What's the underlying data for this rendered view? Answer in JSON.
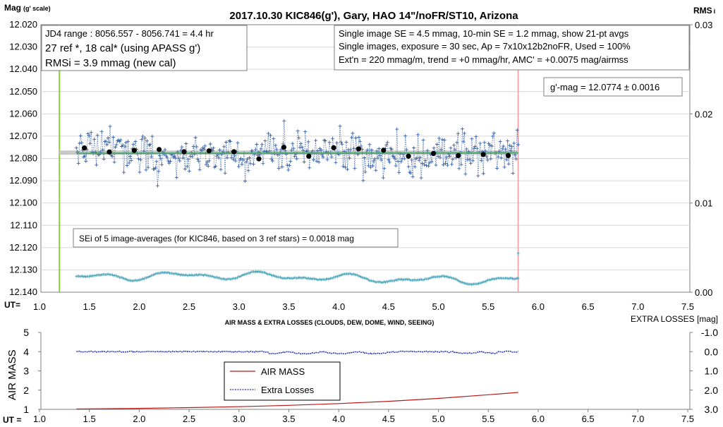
{
  "top": {
    "title": "2017.10.30  KIC846(g'),  Gary, HAO 14\"/noFR/ST10,  Arizona",
    "ylabel_left_main": "Mag",
    "ylabel_left_sub": "(g' scale)",
    "ylabel_right_main": "RMS",
    "ylabel_right_sub": "i",
    "ut_label": "UT=",
    "info_left": [
      "JD4 range : 8056.557 - 8056.741 =  4.4  hr",
      "27 ref *, 18 cal* (using APASS g')",
      "RMSi = 3.9 mmag (new cal)"
    ],
    "info_right": [
      "Single image SE = 4.5 mmag, 10-min SE = 1.2 mmag, show  21-pt avgs",
      "Single images, exposure = 30 sec, Ap = 7x10x12b2noFR,  Used = 100%",
      "Ext'n = 220 mmag/m, trend =  +0 mmag/hr, AMC' = +0.0075 mag/airmss"
    ],
    "mag_box": "g'-mag = 12.0774 ± 0.0016",
    "sei_box": "SEi of 5 image-averages (for KIC846, based on 3 ref stars) = 0.0018  mag"
  },
  "bottom": {
    "title": "AIR MASS & EXTRA LOSSES (CLOUDS, DEW, DOME, WIND, SEEING)",
    "ylabel_left": "AIR MASS",
    "ylabel_right": "EXTRA LOSSES [mag]",
    "ut_label": "UT =",
    "legend": [
      "AIR MASS",
      "Extra Losses"
    ]
  },
  "colors": {
    "data": "#3a62a8",
    "avg": "#000000",
    "trend": "#4aa86a",
    "mean_band": "#c8c8c8",
    "rms": "#4aa6b8",
    "start_line": "#8ccc3c",
    "end_line": "#f4a8b0",
    "airmass": "#b81818",
    "losses": "#1a28b0"
  },
  "chart_data": [
    {
      "type": "scatter",
      "xlabel": "UT=",
      "ylabel": "Mag (g' scale)",
      "y2label": "RMS i",
      "xlim": [
        1.0,
        7.5
      ],
      "ylim": [
        12.02,
        12.14
      ],
      "y_reversed": true,
      "y2lim": [
        0,
        0.03
      ],
      "x_ticks": [
        "1.0",
        "1.5",
        "2.0",
        "2.5",
        "3.0",
        "3.5",
        "4.0",
        "4.5",
        "5.0",
        "5.5",
        "6.0",
        "6.5",
        "7.0",
        "7.5"
      ],
      "y_ticks": [
        "12.020",
        "12.030",
        "12.040",
        "12.050",
        "12.060",
        "12.070",
        "12.080",
        "12.090",
        "12.100",
        "12.110",
        "12.120",
        "12.130",
        "12.140"
      ],
      "y2_ticks": [
        "0.03",
        "0.02",
        "0.01",
        "0.00"
      ],
      "grid": true,
      "series": [
        {
          "kind": "single-images",
          "x_range": [
            1.37,
            5.8
          ],
          "center": 12.0775,
          "spread": 0.0045
        },
        {
          "kind": "averages",
          "x": [
            1.45,
            1.7,
            1.95,
            2.2,
            2.45,
            2.7,
            2.95,
            3.2,
            3.45,
            3.7,
            3.95,
            4.2,
            4.45,
            4.7,
            4.95,
            5.2,
            5.45,
            5.7
          ],
          "y": [
            12.0753,
            12.0771,
            12.0764,
            12.076,
            12.077,
            12.0766,
            12.077,
            12.0802,
            12.075,
            12.079,
            12.0752,
            12.0757,
            12.0763,
            12.079,
            12.0778,
            12.0787,
            12.0782,
            12.0787
          ]
        },
        {
          "kind": "trend",
          "x": [
            1.37,
            5.8
          ],
          "y": [
            12.0777,
            12.0775
          ]
        },
        {
          "kind": "mean",
          "x": [
            1.2,
            5.8
          ],
          "y": [
            12.0774,
            12.0774
          ]
        },
        {
          "kind": "rms",
          "x_range": [
            1.37,
            5.8
          ],
          "center": 12.1335
        }
      ],
      "markers": [
        {
          "x": 1.2,
          "kind": "start"
        },
        {
          "x": 5.8,
          "kind": "end"
        }
      ]
    },
    {
      "type": "line",
      "xlabel": "UT =",
      "ylabel": "AIR MASS",
      "y2label": "EXTRA LOSSES [mag]",
      "xlim": [
        1.0,
        7.5
      ],
      "ylim": [
        1,
        5
      ],
      "y2lim": [
        3.0,
        -1.0
      ],
      "x_ticks": [
        "1.0",
        "1.5",
        "2.0",
        "2.5",
        "3.0",
        "3.5",
        "4.0",
        "4.5",
        "5.0",
        "5.5",
        "6.0",
        "6.5",
        "7.0",
        "7.5"
      ],
      "y_ticks": [
        "1",
        "2",
        "3",
        "4",
        "5"
      ],
      "y2_ticks": [
        "-1.0",
        "0.0",
        "1.0",
        "2.0",
        "3.0"
      ],
      "grid": false,
      "legend": "upper-center",
      "series": [
        {
          "name": "AIR MASS",
          "x": [
            1.37,
            2.0,
            2.5,
            3.0,
            3.5,
            4.0,
            4.5,
            5.0,
            5.5,
            5.8
          ],
          "y": [
            1.02,
            1.05,
            1.09,
            1.14,
            1.21,
            1.3,
            1.42,
            1.57,
            1.76,
            1.88
          ]
        },
        {
          "name": "Extra Losses",
          "x_range": [
            1.37,
            5.8
          ],
          "center": 0.0
        }
      ]
    }
  ]
}
